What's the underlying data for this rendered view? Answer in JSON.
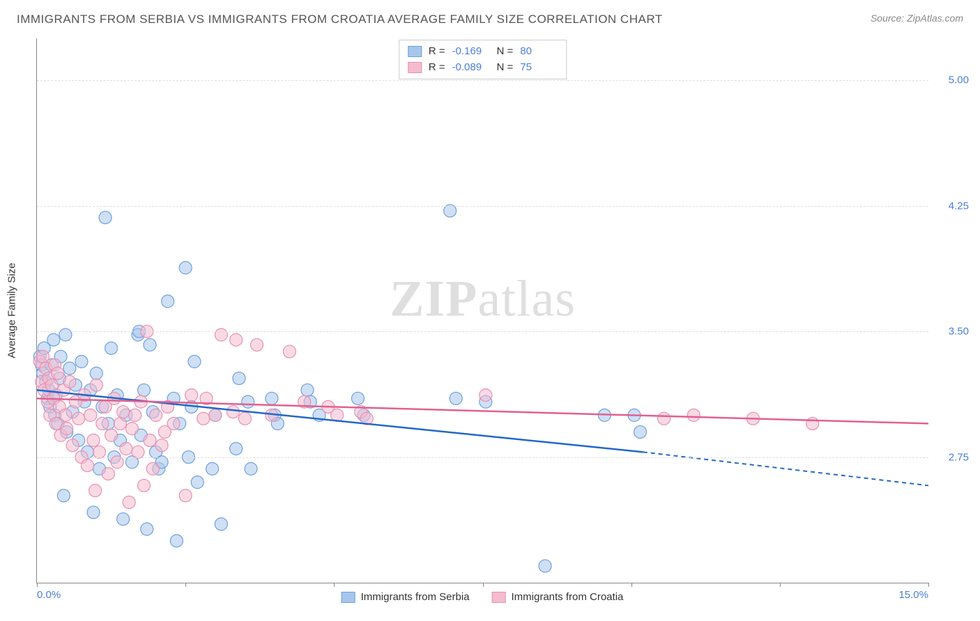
{
  "title": "IMMIGRANTS FROM SERBIA VS IMMIGRANTS FROM CROATIA AVERAGE FAMILY SIZE CORRELATION CHART",
  "source": "Source: ZipAtlas.com",
  "watermark_bold": "ZIP",
  "watermark_light": "atlas",
  "ylabel": "Average Family Size",
  "chart": {
    "type": "scatter-correlation",
    "background_color": "#ffffff",
    "grid_color": "#dddddd",
    "axis_color": "#888888",
    "xlim": [
      0.0,
      15.0
    ],
    "ylim": [
      2.0,
      5.25
    ],
    "xticks_minor": [
      0,
      2.5,
      5.0,
      7.5,
      10.0,
      12.5,
      15.0
    ],
    "xtick_labels": [
      {
        "pos": 0.0,
        "label": "0.0%"
      },
      {
        "pos": 15.0,
        "label": "15.0%"
      }
    ],
    "yticks": [
      {
        "pos": 2.75,
        "label": "2.75"
      },
      {
        "pos": 3.5,
        "label": "3.50"
      },
      {
        "pos": 4.25,
        "label": "4.25"
      },
      {
        "pos": 5.0,
        "label": "5.00"
      }
    ],
    "tick_label_color": "#4a7fd8",
    "tick_fontsize": 15,
    "marker_radius": 9,
    "marker_opacity": 0.55,
    "line_width": 2.5,
    "series": [
      {
        "name": "Immigrants from Serbia",
        "color_fill": "#a8c6ec",
        "color_stroke": "#6fa0dd",
        "line_color": "#2268c9",
        "R": "-0.169",
        "N": "80",
        "trend": {
          "x1": 0.0,
          "y1": 3.15,
          "x2": 10.2,
          "y2": 2.78,
          "dash_to_x": 15.0,
          "dash_to_y": 2.58
        },
        "points": [
          [
            0.05,
            3.35
          ],
          [
            0.08,
            3.3
          ],
          [
            0.1,
            3.25
          ],
          [
            0.12,
            3.4
          ],
          [
            0.15,
            3.2
          ],
          [
            0.18,
            3.1
          ],
          [
            0.2,
            3.15
          ],
          [
            0.22,
            3.05
          ],
          [
            0.25,
            3.3
          ],
          [
            0.28,
            3.45
          ],
          [
            0.3,
            3.0
          ],
          [
            0.32,
            3.12
          ],
          [
            0.35,
            2.95
          ],
          [
            0.38,
            3.22
          ],
          [
            0.4,
            3.35
          ],
          [
            0.45,
            2.52
          ],
          [
            0.48,
            3.48
          ],
          [
            0.5,
            2.9
          ],
          [
            0.55,
            3.28
          ],
          [
            0.6,
            3.02
          ],
          [
            0.65,
            3.18
          ],
          [
            0.7,
            2.85
          ],
          [
            0.75,
            3.32
          ],
          [
            0.8,
            3.08
          ],
          [
            0.85,
            2.78
          ],
          [
            0.9,
            3.15
          ],
          [
            0.95,
            2.42
          ],
          [
            1.0,
            3.25
          ],
          [
            1.05,
            2.68
          ],
          [
            1.1,
            3.05
          ],
          [
            1.15,
            4.18
          ],
          [
            1.2,
            2.95
          ],
          [
            1.25,
            3.4
          ],
          [
            1.3,
            2.75
          ],
          [
            1.35,
            3.12
          ],
          [
            1.4,
            2.85
          ],
          [
            1.45,
            2.38
          ],
          [
            1.5,
            3.0
          ],
          [
            1.6,
            2.72
          ],
          [
            1.7,
            3.48
          ],
          [
            1.72,
            3.5
          ],
          [
            1.75,
            2.88
          ],
          [
            1.8,
            3.15
          ],
          [
            1.85,
            2.32
          ],
          [
            1.9,
            3.42
          ],
          [
            1.95,
            3.02
          ],
          [
            2.0,
            2.78
          ],
          [
            2.05,
            2.68
          ],
          [
            2.1,
            2.72
          ],
          [
            2.2,
            3.68
          ],
          [
            2.3,
            3.1
          ],
          [
            2.35,
            2.25
          ],
          [
            2.4,
            2.95
          ],
          [
            2.5,
            3.88
          ],
          [
            2.55,
            2.75
          ],
          [
            2.6,
            3.05
          ],
          [
            2.65,
            3.32
          ],
          [
            2.7,
            2.6
          ],
          [
            2.95,
            2.68
          ],
          [
            3.0,
            3.0
          ],
          [
            3.1,
            2.35
          ],
          [
            3.35,
            2.8
          ],
          [
            3.4,
            3.22
          ],
          [
            3.55,
            3.08
          ],
          [
            3.6,
            2.68
          ],
          [
            3.95,
            3.1
          ],
          [
            4.0,
            3.0
          ],
          [
            4.05,
            2.95
          ],
          [
            4.55,
            3.15
          ],
          [
            4.6,
            3.08
          ],
          [
            4.75,
            3.0
          ],
          [
            5.4,
            3.1
          ],
          [
            5.5,
            3.0
          ],
          [
            6.95,
            4.22
          ],
          [
            7.05,
            3.1
          ],
          [
            7.55,
            3.08
          ],
          [
            8.55,
            2.1
          ],
          [
            9.55,
            3.0
          ],
          [
            10.05,
            3.0
          ],
          [
            10.15,
            2.9
          ]
        ]
      },
      {
        "name": "Immigrants from Croatia",
        "color_fill": "#f4bcce",
        "color_stroke": "#ea8fb0",
        "line_color": "#e26091",
        "R": "-0.089",
        "N": "75",
        "trend": {
          "x1": 0.0,
          "y1": 3.1,
          "x2": 15.0,
          "y2": 2.95,
          "dash_to_x": null,
          "dash_to_y": null
        },
        "points": [
          [
            0.05,
            3.32
          ],
          [
            0.08,
            3.2
          ],
          [
            0.1,
            3.35
          ],
          [
            0.12,
            3.15
          ],
          [
            0.15,
            3.28
          ],
          [
            0.18,
            3.08
          ],
          [
            0.2,
            3.22
          ],
          [
            0.22,
            3.0
          ],
          [
            0.25,
            3.18
          ],
          [
            0.28,
            3.1
          ],
          [
            0.3,
            3.3
          ],
          [
            0.32,
            2.95
          ],
          [
            0.35,
            3.25
          ],
          [
            0.38,
            3.05
          ],
          [
            0.4,
            2.88
          ],
          [
            0.45,
            3.15
          ],
          [
            0.48,
            3.0
          ],
          [
            0.5,
            2.92
          ],
          [
            0.55,
            3.2
          ],
          [
            0.6,
            2.82
          ],
          [
            0.65,
            3.08
          ],
          [
            0.7,
            2.98
          ],
          [
            0.75,
            2.75
          ],
          [
            0.8,
            3.12
          ],
          [
            0.85,
            2.7
          ],
          [
            0.9,
            3.0
          ],
          [
            0.95,
            2.85
          ],
          [
            0.98,
            2.55
          ],
          [
            1.0,
            3.18
          ],
          [
            1.05,
            2.78
          ],
          [
            1.1,
            2.95
          ],
          [
            1.15,
            3.05
          ],
          [
            1.2,
            2.65
          ],
          [
            1.25,
            2.88
          ],
          [
            1.3,
            3.1
          ],
          [
            1.35,
            2.72
          ],
          [
            1.4,
            2.95
          ],
          [
            1.45,
            3.02
          ],
          [
            1.5,
            2.8
          ],
          [
            1.55,
            2.48
          ],
          [
            1.6,
            2.92
          ],
          [
            1.65,
            3.0
          ],
          [
            1.7,
            2.78
          ],
          [
            1.75,
            3.08
          ],
          [
            1.8,
            2.58
          ],
          [
            1.85,
            3.5
          ],
          [
            1.9,
            2.85
          ],
          [
            1.95,
            2.68
          ],
          [
            2.0,
            3.0
          ],
          [
            2.1,
            2.82
          ],
          [
            2.15,
            2.9
          ],
          [
            2.2,
            3.05
          ],
          [
            2.3,
            2.95
          ],
          [
            2.5,
            2.52
          ],
          [
            2.6,
            3.12
          ],
          [
            2.8,
            2.98
          ],
          [
            2.85,
            3.1
          ],
          [
            3.0,
            3.0
          ],
          [
            3.1,
            3.48
          ],
          [
            3.3,
            3.02
          ],
          [
            3.35,
            3.45
          ],
          [
            3.5,
            2.98
          ],
          [
            3.7,
            3.42
          ],
          [
            3.95,
            3.0
          ],
          [
            4.25,
            3.38
          ],
          [
            4.5,
            3.08
          ],
          [
            4.9,
            3.05
          ],
          [
            5.05,
            3.0
          ],
          [
            5.45,
            3.02
          ],
          [
            5.55,
            2.98
          ],
          [
            7.55,
            3.12
          ],
          [
            10.55,
            2.98
          ],
          [
            11.05,
            3.0
          ],
          [
            12.05,
            2.98
          ],
          [
            13.05,
            2.95
          ]
        ]
      }
    ]
  },
  "stats_legend": {
    "R_label": "R",
    "N_label": "N",
    "eq": "="
  }
}
